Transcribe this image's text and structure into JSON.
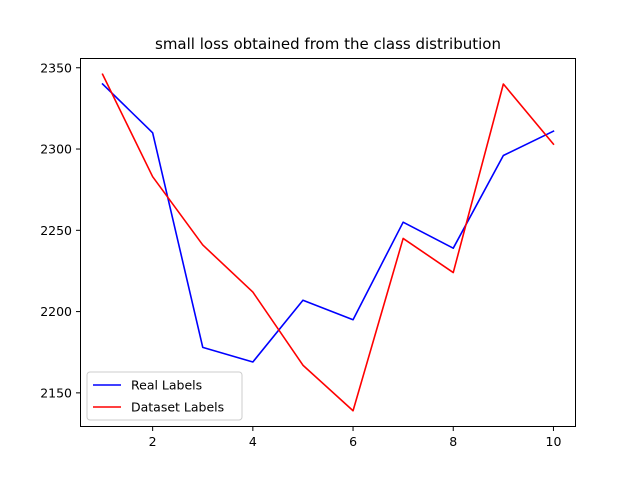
{
  "chart_data": {
    "type": "line",
    "title": "small loss obtained from the class distribution",
    "xlabel": "",
    "ylabel": "",
    "x": [
      1,
      2,
      3,
      4,
      5,
      6,
      7,
      8,
      9,
      10
    ],
    "xlim": [
      0.55,
      10.45
    ],
    "ylim": [
      2129,
      2356
    ],
    "xticks": [
      2,
      4,
      6,
      8,
      10
    ],
    "yticks": [
      2150,
      2200,
      2250,
      2300,
      2350
    ],
    "grid": false,
    "legend_position": "lower-left",
    "series": [
      {
        "name": "Real Labels",
        "color": "#0000ff",
        "values": [
          2340,
          2310,
          2178,
          2169,
          2207,
          2195,
          2255,
          2239,
          2296,
          2311
        ]
      },
      {
        "name": "Dataset Labels",
        "color": "#ff0000",
        "values": [
          2346,
          2283,
          2241,
          2212,
          2167,
          2139,
          2245,
          2224,
          2340,
          2303
        ]
      }
    ]
  }
}
